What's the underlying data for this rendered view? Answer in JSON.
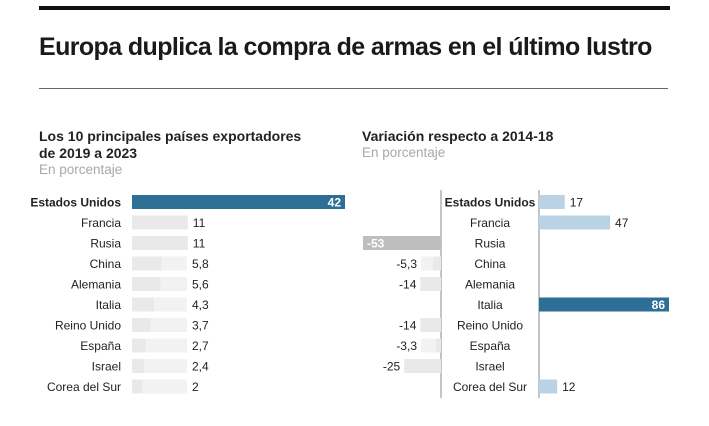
{
  "headline": "Europa duplica la compra de armas en el último lustro",
  "colors": {
    "highlight": "#2e6f96",
    "light": "#b9d3e4",
    "negative_highlight": "#bebebe",
    "track": "#f2f2f2",
    "axis": "#888888"
  },
  "chart_data": [
    {
      "type": "bar",
      "orientation": "horizontal",
      "title": "Los 10 principales países exportadores de 2019 a 2023",
      "title_lines": [
        "Los 10 principales países exportadores",
        "de 2019 a 2023"
      ],
      "unit_label": "En porcentaje",
      "categories": [
        "Estados Unidos",
        "Francia",
        "Rusia",
        "China",
        "Alemania",
        "Italia",
        "Reino Unido",
        "España",
        "Israel",
        "Corea del Sur"
      ],
      "values": [
        42,
        11,
        11,
        5.8,
        5.6,
        4.3,
        3.7,
        2.7,
        2.4,
        2
      ],
      "value_labels": [
        "42",
        "11",
        "11",
        "5,8",
        "5,6",
        "4,3",
        "3,7",
        "2,7",
        "2,4",
        "2"
      ],
      "highlight_index": 0,
      "xlim": [
        0,
        42
      ]
    },
    {
      "type": "bar",
      "orientation": "horizontal-diverging",
      "title": "Variación respecto a 2014-18",
      "title_lines": [
        "Variación respecto a 2014-18"
      ],
      "unit_label": "En porcentaje",
      "categories": [
        "Estados Unidos",
        "Francia",
        "Rusia",
        "China",
        "Alemania",
        "Italia",
        "Reino Unido",
        "España",
        "Israel",
        "Corea del Sur"
      ],
      "values": [
        17,
        47,
        -53,
        -5.3,
        -14,
        86,
        -14,
        -3.3,
        -25,
        12
      ],
      "value_labels": [
        "17",
        "47",
        "-53",
        "-5,3",
        "-14",
        "86",
        "-14",
        "-3,3",
        "-25",
        "12"
      ],
      "highlight_indices": [
        2,
        5
      ],
      "xlim": [
        -53,
        86
      ]
    }
  ]
}
